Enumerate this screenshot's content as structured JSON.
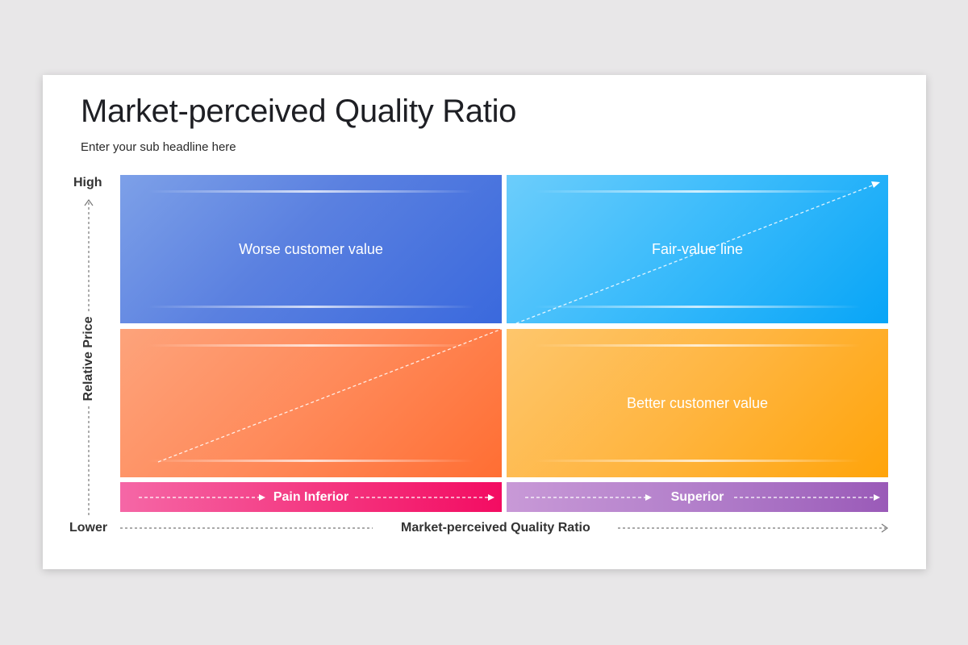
{
  "slide": {
    "title": "Market-perceived Quality Ratio",
    "subtitle": "Enter your sub headline here"
  },
  "axes": {
    "y_high": "High",
    "y_label": "Relative Price",
    "x_low": "Lower",
    "x_label": "Market-perceived Quality Ratio"
  },
  "quadrants": {
    "top_left": "Worse customer value",
    "top_right": "Fair-value line",
    "bottom_left": "",
    "bottom_right": "Better customer value"
  },
  "bars": {
    "left": "Pain Inferior",
    "right": "Superior"
  },
  "colors": {
    "top_left": "#4a77e0",
    "top_right": "#1fb0f8",
    "bottom_left": "#ff7a45",
    "bottom_right": "#ffad2a",
    "bar_left": "#f31f6e",
    "bar_right": "#a56bc1"
  }
}
